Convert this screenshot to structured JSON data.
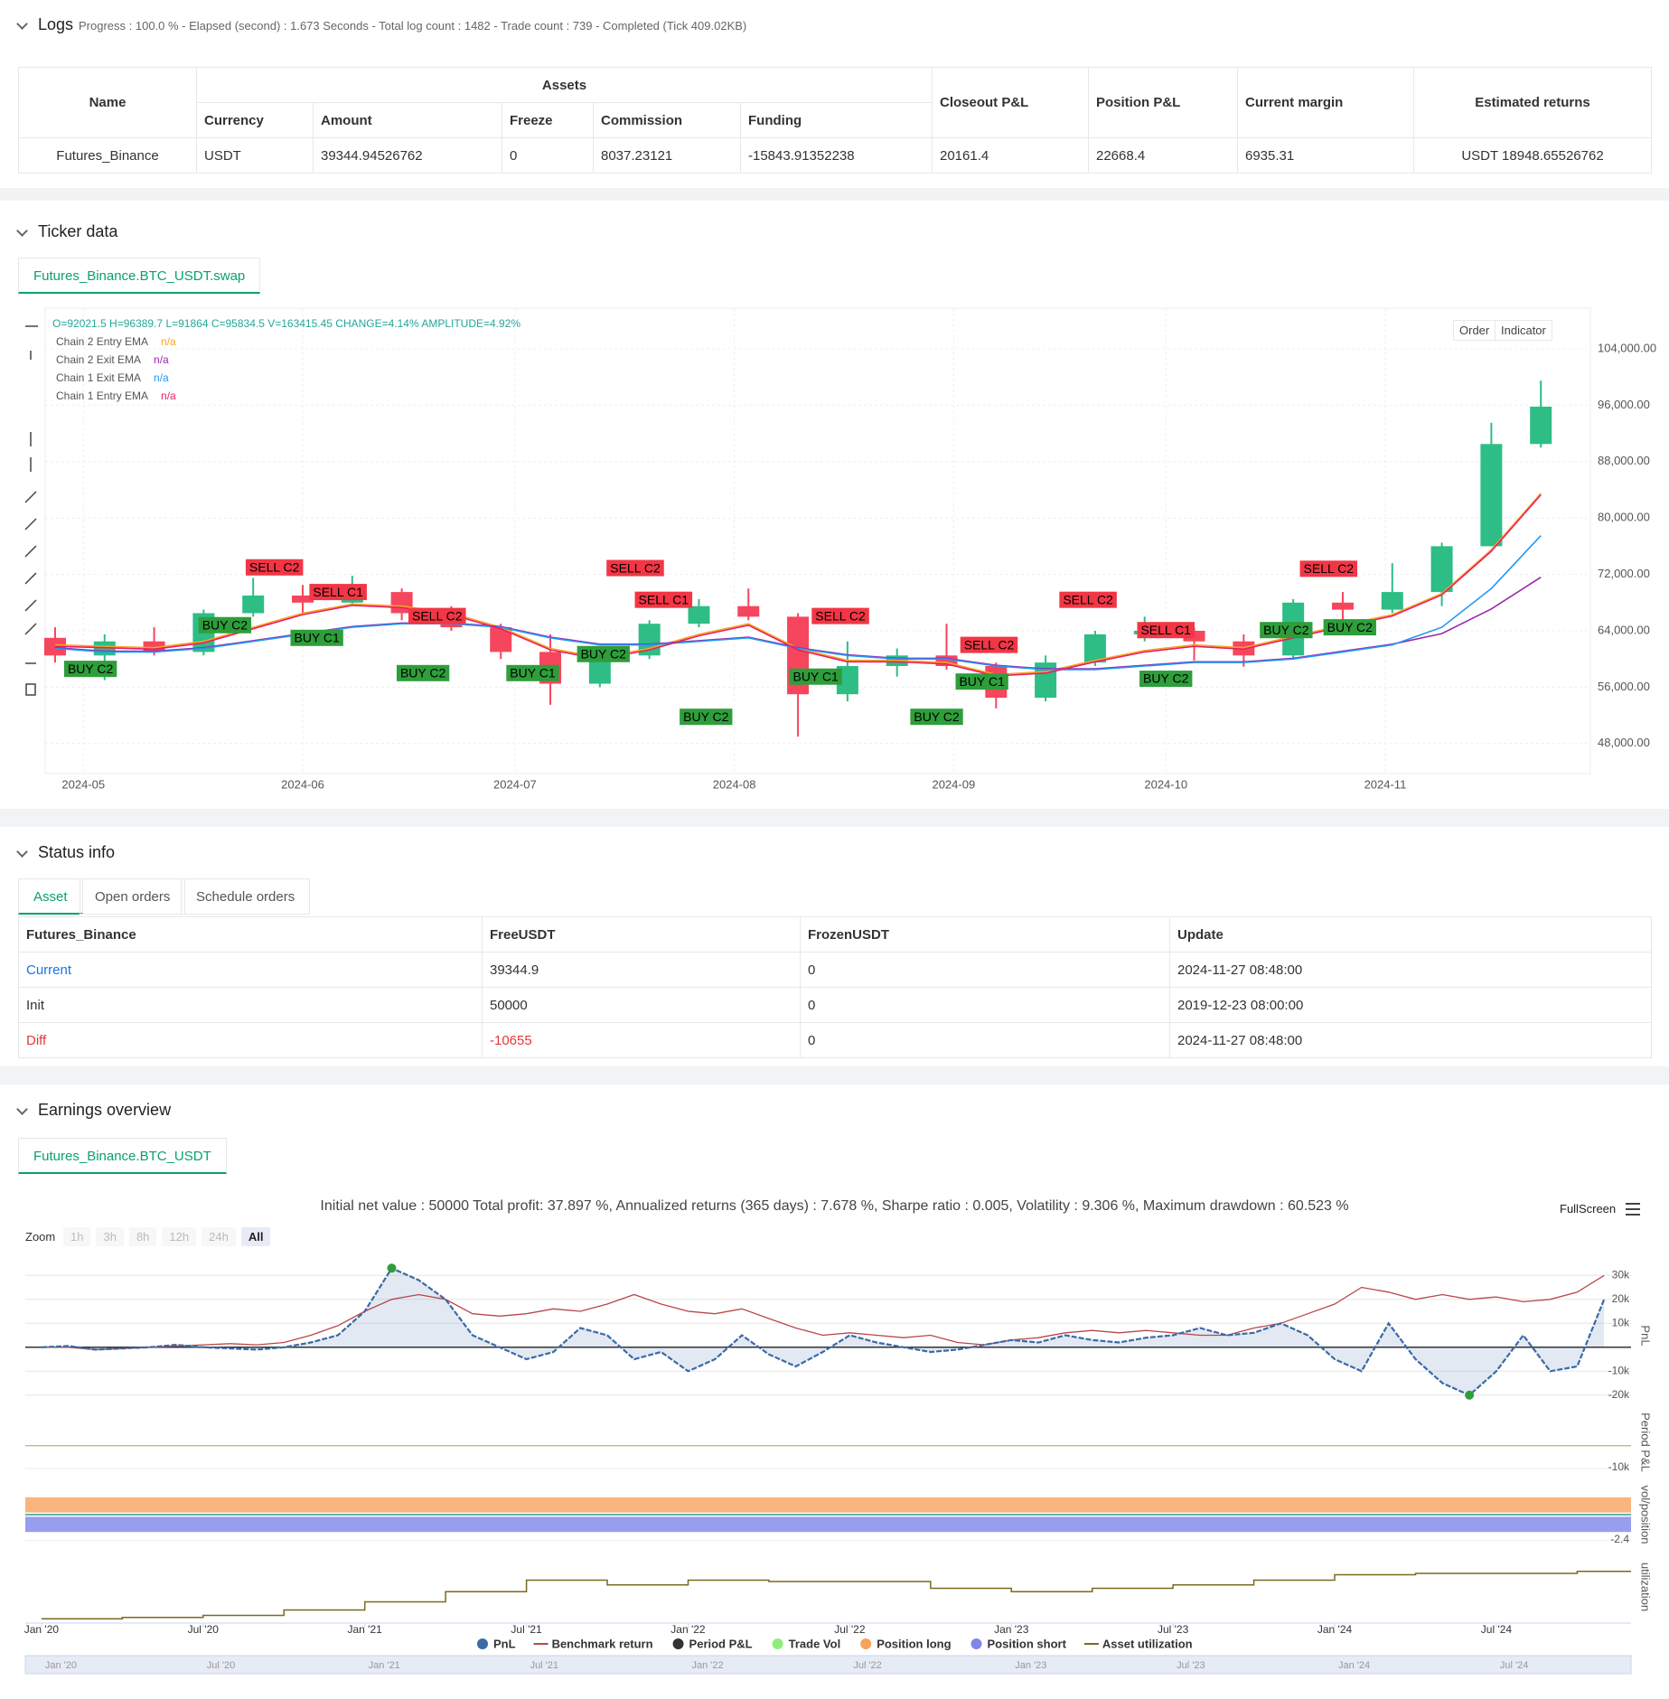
{
  "logs": {
    "title": "Logs",
    "summary": "Progress : 100.0 % - Elapsed (second) : 1.673  Seconds - Total log count : 1482 - Trade count : 739 - Completed (Tick 409.02KB)"
  },
  "assets_table": {
    "group_header": "Assets",
    "headers": [
      "Name",
      "Closeout P&L",
      "Position P&L",
      "Current margin",
      "Estimated returns"
    ],
    "sub_headers": [
      "Currency",
      "Amount",
      "Freeze",
      "Commission",
      "Funding"
    ],
    "rows": [
      [
        "Futures_Binance",
        "USDT",
        "39344.94526762",
        "0",
        "8037.23121",
        "-15843.91352238",
        "20161.4",
        "22668.4",
        "6935.31",
        "USDT 18948.65526762"
      ]
    ]
  },
  "ticker": {
    "title": "Ticker data",
    "tab": "Futures_Binance.BTC_USDT.swap",
    "buttons": [
      "Order",
      "Indicator"
    ]
  },
  "status": {
    "title": "Status info",
    "tabs": [
      "Asset",
      "Open orders",
      "Schedule orders"
    ],
    "table": {
      "headers": [
        "Futures_Binance",
        "FreeUSDT",
        "FrozenUSDT",
        "Update"
      ],
      "rows": [
        [
          "Current",
          "39344.9",
          "0",
          "2024-11-27 08:48:00"
        ],
        [
          "Init",
          "50000",
          "0",
          "2019-12-23 08:00:00"
        ],
        [
          "Diff",
          "-10655",
          "0",
          "2024-11-27 08:48:00"
        ]
      ]
    }
  },
  "earnings": {
    "title": "Earnings overview",
    "tab": "Futures_Binance.BTC_USDT",
    "summary": "Initial net value : 50000 Total profit: 37.897 %, Annualized returns (365 days) : 7.678 %, Sharpe ratio : 0.005, Volatility : 9.306 %, Maximum drawdown : 60.523 %",
    "zoom_label": "Zoom",
    "zoom_buttons": [
      "1h",
      "3h",
      "8h",
      "12h",
      "24h",
      "All"
    ],
    "fullscreen": "FullScreen"
  },
  "chart_data": [
    {
      "type": "candlestick",
      "ohlc_info": "O=92021.5 H=96389.7 L=91864 C=95834.5 V=163415.45 CHANGE=4.14% AMPLITUDE=4.92%",
      "x": [
        -4,
        3,
        10,
        17,
        24,
        31,
        38,
        45,
        52,
        59,
        66,
        73,
        80,
        87,
        94,
        101,
        108,
        115,
        122,
        129,
        136,
        143,
        150,
        157,
        164,
        171,
        178,
        185,
        192,
        199,
        206
      ],
      "open": [
        63000,
        60500,
        62500,
        61000,
        66500,
        69000,
        68000,
        69500,
        66500,
        64500,
        61000,
        56500,
        60500,
        65000,
        67500,
        66000,
        55000,
        59000,
        60500,
        59000,
        54500,
        59500,
        63500,
        64000,
        62500,
        60500,
        68000,
        67000,
        69500,
        76000,
        90500
      ],
      "high": [
        64500,
        63500,
        64500,
        67000,
        71500,
        70500,
        71800,
        70000,
        67500,
        65000,
        63500,
        61000,
        65500,
        68500,
        70000,
        66500,
        62500,
        61500,
        65000,
        59500,
        60500,
        64000,
        66000,
        64500,
        63500,
        68500,
        69500,
        73600,
        76500,
        93500,
        99500
      ],
      "low": [
        59500,
        57000,
        60500,
        60500,
        66000,
        66500,
        67500,
        65500,
        64000,
        60000,
        53500,
        56000,
        60000,
        64500,
        65500,
        49000,
        54000,
        57500,
        58500,
        53000,
        54000,
        59000,
        62500,
        59800,
        58900,
        60000,
        65500,
        66500,
        67500,
        76000,
        90000
      ],
      "close": [
        60500,
        62500,
        61000,
        66500,
        69000,
        68000,
        69500,
        66500,
        64500,
        61000,
        56500,
        60500,
        65000,
        67500,
        66000,
        55000,
        59000,
        60500,
        59000,
        54500,
        59500,
        63500,
        64000,
        62500,
        60500,
        68000,
        67000,
        69500,
        76000,
        90500,
        95800
      ],
      "up_color": "#2ebd85",
      "down_color": "#f6465d",
      "series": [
        {
          "name": "Chain 2 Entry EMA",
          "last_value_label": "n/a",
          "color": "#f5a623",
          "values": [
            62000,
            61800,
            61600,
            62500,
            64500,
            66500,
            67800,
            67500,
            66500,
            64500,
            61500,
            60200,
            61500,
            63500,
            65000,
            61500,
            59800,
            59800,
            59500,
            57800,
            58200,
            59800,
            61200,
            62000,
            61600,
            63200,
            64800,
            66300,
            69300,
            75500,
            83500
          ]
        },
        {
          "name": "Chain 2 Exit EMA",
          "last_value_label": "n/a",
          "color": "#9c27b0",
          "values": [
            61600,
            61100,
            61100,
            61600,
            62600,
            63600,
            64600,
            65100,
            65100,
            64600,
            63100,
            62100,
            62100,
            62600,
            63100,
            61600,
            60600,
            60100,
            60100,
            59100,
            58600,
            58600,
            59100,
            59600,
            59600,
            60100,
            61100,
            62100,
            63600,
            67100,
            71600
          ]
        },
        {
          "name": "Chain 1 Exit EMA",
          "last_value_label": "n/a",
          "color": "#2196f3",
          "values": [
            61500,
            61000,
            61000,
            61500,
            62500,
            63500,
            64500,
            65000,
            65000,
            64500,
            63000,
            62000,
            62000,
            62500,
            63000,
            61500,
            60500,
            60000,
            60000,
            59000,
            58500,
            58500,
            59000,
            59500,
            59500,
            60000,
            61000,
            62000,
            64500,
            70000,
            77500
          ]
        },
        {
          "name": "Chain 1 Entry EMA",
          "last_value_label": "n/a",
          "color": "#e91e63",
          "values": [
            61800,
            61600,
            61400,
            62300,
            64300,
            66300,
            67600,
            67300,
            66300,
            64300,
            61300,
            60000,
            61300,
            63300,
            64800,
            61300,
            59600,
            59600,
            59300,
            57600,
            58000,
            59600,
            61000,
            61800,
            61400,
            63000,
            64600,
            66100,
            69100,
            75300,
            83300
          ]
        }
      ],
      "signals": [
        {
          "label": "SELL C2",
          "x": 27,
          "y": 73000,
          "color": "#f23645"
        },
        {
          "label": "SELL C1",
          "x": 36,
          "y": 69500,
          "color": "#f23645"
        },
        {
          "label": "BUY C2",
          "x": 1,
          "y": 58600,
          "color": "#2e9e3b"
        },
        {
          "label": "BUY C2",
          "x": 20,
          "y": 64800,
          "color": "#2e9e3b"
        },
        {
          "label": "BUY C1",
          "x": 33,
          "y": 63000,
          "color": "#2e9e3b"
        },
        {
          "label": "SELL C2",
          "x": 50,
          "y": 66100,
          "color": "#f23645"
        },
        {
          "label": "BUY C2",
          "x": 48,
          "y": 58000,
          "color": "#2e9e3b"
        },
        {
          "label": "BUY C1",
          "x": 63.5,
          "y": 58000,
          "color": "#2e9e3b"
        },
        {
          "label": "SELL C2",
          "x": 78,
          "y": 72900,
          "color": "#f23645"
        },
        {
          "label": "SELL C1",
          "x": 82,
          "y": 68400,
          "color": "#f23645"
        },
        {
          "label": "BUY C2",
          "x": 73.5,
          "y": 60700,
          "color": "#2e9e3b"
        },
        {
          "label": "BUY C2",
          "x": 88,
          "y": 51800,
          "color": "#2e9e3b"
        },
        {
          "label": "SELL C2",
          "x": 107,
          "y": 66100,
          "color": "#f23645"
        },
        {
          "label": "BUY C1",
          "x": 103.5,
          "y": 57500,
          "color": "#2e9e3b"
        },
        {
          "label": "BUY C2",
          "x": 120.6,
          "y": 51800,
          "color": "#2e9e3b"
        },
        {
          "label": "SELL C2",
          "x": 128,
          "y": 62000,
          "color": "#f23645"
        },
        {
          "label": "BUY C1",
          "x": 127,
          "y": 56800,
          "color": "#2e9e3b"
        },
        {
          "label": "SELL C2",
          "x": 142,
          "y": 68400,
          "color": "#f23645"
        },
        {
          "label": "SELL C1",
          "x": 153,
          "y": 64100,
          "color": "#f23645"
        },
        {
          "label": "BUY C2",
          "x": 153,
          "y": 57200,
          "color": "#2e9e3b"
        },
        {
          "label": "SELL C2",
          "x": 176,
          "y": 72800,
          "color": "#f23645"
        },
        {
          "label": "BUY C2",
          "x": 170,
          "y": 64100,
          "color": "#2e9e3b"
        },
        {
          "label": "BUY C2",
          "x": 179,
          "y": 64500,
          "color": "#2e9e3b"
        }
      ],
      "xlim": [
        -5.4,
        213
      ],
      "xticks": [
        {
          "value": 0,
          "label": "2024-05"
        },
        {
          "value": 31,
          "label": "2024-06"
        },
        {
          "value": 61,
          "label": "2024-07"
        },
        {
          "value": 92,
          "label": "2024-08"
        },
        {
          "value": 123,
          "label": "2024-09"
        },
        {
          "value": 153,
          "label": "2024-10"
        },
        {
          "value": 184,
          "label": "2024-11"
        }
      ],
      "ylim": [
        44000,
        109000
      ],
      "yticks": [
        {
          "value": 104000,
          "label": "104,000.00"
        },
        {
          "value": 96000,
          "label": "96,000.00"
        },
        {
          "value": 88000,
          "label": "88,000.00"
        },
        {
          "value": 80000,
          "label": "80,000.00"
        },
        {
          "value": 72000,
          "label": "72,000.00"
        },
        {
          "value": 64000,
          "label": "64,000.00"
        },
        {
          "value": 56000,
          "label": "56,000.00"
        },
        {
          "value": 48000,
          "label": "48,000.00"
        }
      ],
      "grid": true
    },
    {
      "type": "line",
      "x": [
        0,
        1,
        2,
        3,
        4,
        5,
        6,
        7,
        8,
        9,
        10,
        11,
        12,
        13,
        14,
        15,
        16,
        17,
        18,
        19,
        20,
        21,
        22,
        23,
        24,
        25,
        26,
        27,
        28,
        29,
        30,
        31,
        32,
        33,
        34,
        35,
        36,
        37,
        38,
        39,
        40,
        41,
        42,
        43,
        44,
        45,
        46,
        47,
        48,
        49,
        50,
        51,
        52,
        53,
        54,
        55,
        56,
        57,
        58
      ],
      "series": [
        {
          "name": "PnL",
          "color": "#3b6aa6",
          "values": [
            0,
            500,
            -1000,
            -500,
            0,
            1000,
            0,
            -500,
            -1000,
            0,
            2000,
            5000,
            15000,
            33000,
            28000,
            20000,
            5000,
            0,
            -5000,
            -2000,
            8000,
            5000,
            -5000,
            -2000,
            -10000,
            -5000,
            5000,
            -3000,
            -8000,
            -2000,
            5000,
            2000,
            0,
            -2000,
            -1000,
            1000,
            3000,
            2000,
            5000,
            3000,
            2000,
            4000,
            5000,
            8000,
            5000,
            6000,
            10000,
            5000,
            -5000,
            -10000,
            10000,
            -5000,
            -15000,
            -20000,
            -10000,
            5000,
            -10000,
            -8000,
            20000
          ]
        },
        {
          "name": "Benchmark return",
          "color": "#b9474a",
          "values": [
            0,
            0,
            -1000,
            -500,
            0,
            500,
            1000,
            1500,
            1000,
            2000,
            5000,
            9000,
            15000,
            20000,
            22000,
            20000,
            14000,
            13000,
            14000,
            16000,
            15000,
            18000,
            22000,
            18000,
            15000,
            14000,
            16000,
            12000,
            8000,
            5000,
            6000,
            5000,
            4000,
            5000,
            2000,
            1000,
            3000,
            4000,
            6000,
            7000,
            6000,
            7000,
            6000,
            5000,
            5000,
            8000,
            10000,
            14000,
            18000,
            25000,
            23000,
            20000,
            22000,
            20000,
            21000,
            19000,
            20000,
            23000,
            30000
          ]
        },
        {
          "name": "Asset utilization",
          "color": "#7a6a1e",
          "x": [
            0,
            3,
            6,
            9,
            12,
            15,
            18,
            21,
            24,
            27,
            30,
            33,
            36,
            39,
            42,
            45,
            48,
            51,
            54,
            57
          ],
          "values": [
            0.05,
            0.07,
            0.1,
            0.18,
            0.3,
            0.45,
            0.62,
            0.55,
            0.62,
            0.6,
            0.6,
            0.5,
            0.45,
            0.5,
            0.55,
            0.62,
            0.7,
            0.72,
            0.72,
            0.75
          ]
        }
      ],
      "legend_extra": [
        {
          "name": "Period P&L",
          "color": "#333333"
        },
        {
          "name": "Trade Vol",
          "color": "#90ed7d"
        },
        {
          "name": "Position long",
          "color": "#f7a35c"
        },
        {
          "name": "Position short",
          "color": "#8085e9"
        }
      ],
      "panel_titles": [
        "PnL",
        "Period P&L",
        "vol/position",
        "utilization"
      ],
      "xlim": [
        -0.6,
        59
      ],
      "xticks": [
        {
          "value": 0,
          "label": "Jan '20"
        },
        {
          "value": 6,
          "label": "Jul '20"
        },
        {
          "value": 12,
          "label": "Jan '21"
        },
        {
          "value": 18,
          "label": "Jul '21"
        },
        {
          "value": 24,
          "label": "Jan '22"
        },
        {
          "value": 30,
          "label": "Jul '22"
        },
        {
          "value": 36,
          "label": "Jan '23"
        },
        {
          "value": 42,
          "label": "Jul '23"
        },
        {
          "value": 48,
          "label": "Jan '24"
        },
        {
          "value": 54,
          "label": "Jul '24"
        }
      ],
      "ylim": [
        -25000,
        35000
      ],
      "yticks": [
        {
          "value": 30000,
          "label": "30k"
        },
        {
          "value": 20000,
          "label": "20k"
        },
        {
          "value": 10000,
          "label": "10k"
        },
        {
          "value": -10000,
          "label": "-10k"
        },
        {
          "value": -20000,
          "label": "-20k"
        }
      ],
      "period_ylim": [
        -12000,
        15000
      ],
      "period_yticks": [
        {
          "value": -10000,
          "label": "-10k"
        }
      ],
      "position_ylim": [
        -3,
        3
      ],
      "position_yticks": [
        -2.4
      ],
      "utilization_ylim": [
        0,
        1
      ],
      "grid": true
    }
  ]
}
